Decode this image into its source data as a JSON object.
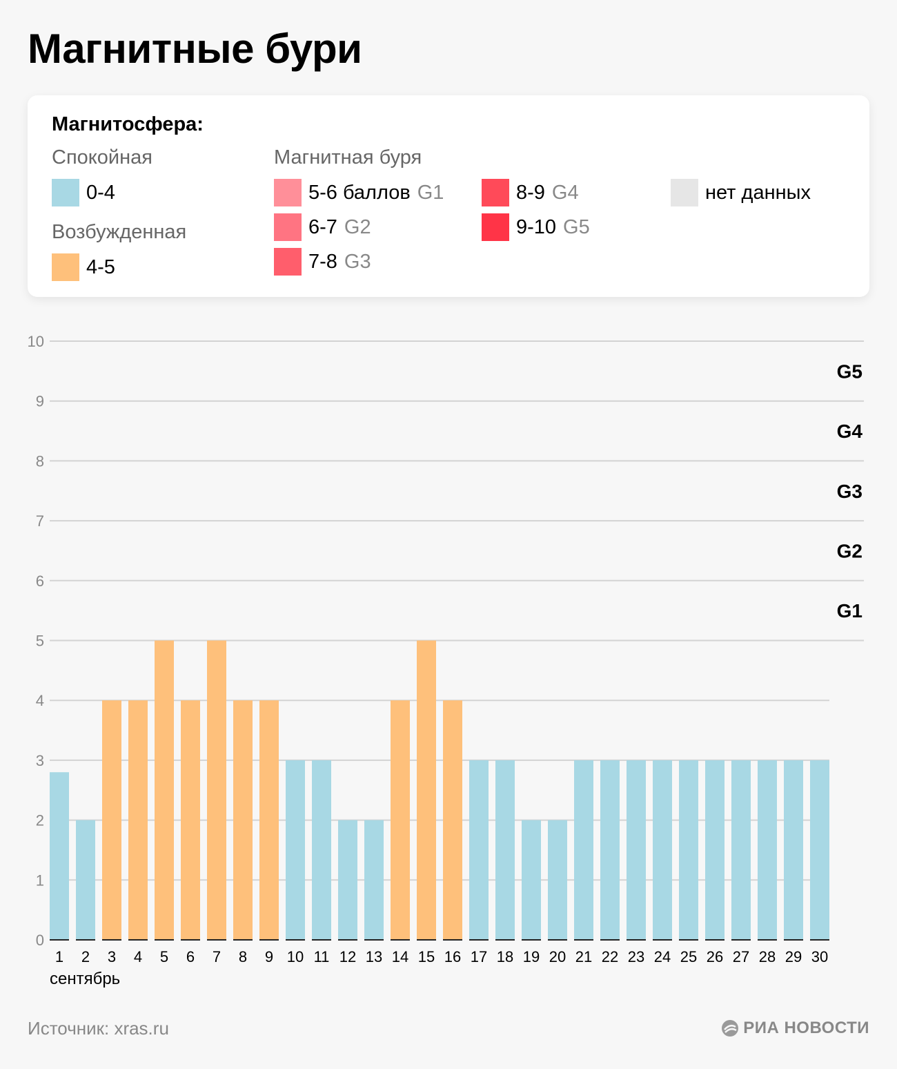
{
  "title": "Магнитные бури",
  "legend": {
    "heading": "Магнитосфера:",
    "calm": {
      "label": "Спокойная",
      "item": {
        "range": "0-4",
        "color": "#a8d8e4"
      }
    },
    "excited": {
      "label": "Возбужденная",
      "item": {
        "range": "4-5",
        "color": "#fec07b"
      }
    },
    "storm": {
      "label": "Магнитная буря",
      "items": [
        {
          "range": "5-6 баллов",
          "level": "G1",
          "color": "#ff8f99"
        },
        {
          "range": "6-7",
          "level": "G2",
          "color": "#ff7482"
        },
        {
          "range": "7-8",
          "level": "G3",
          "color": "#ff5e6c"
        },
        {
          "range": "8-9",
          "level": "G4",
          "color": "#ff4a59"
        },
        {
          "range": "9-10",
          "level": "G5",
          "color": "#ff3447"
        }
      ]
    },
    "nodata": {
      "label": "нет данных",
      "color": "#e6e6e6"
    }
  },
  "chart_data": {
    "type": "bar",
    "categories": [
      "1",
      "2",
      "3",
      "4",
      "5",
      "6",
      "7",
      "8",
      "9",
      "10",
      "11",
      "12",
      "13",
      "14",
      "15",
      "16",
      "17",
      "18",
      "19",
      "20",
      "21",
      "22",
      "23",
      "24",
      "25",
      "26",
      "27",
      "28",
      "29",
      "30"
    ],
    "values": [
      2.8,
      2,
      4,
      4,
      5,
      4,
      5,
      4,
      4,
      3,
      3,
      2,
      2,
      4,
      5,
      4,
      3,
      3,
      2,
      2,
      3,
      3,
      3,
      3,
      3,
      3,
      3,
      3,
      3,
      3
    ],
    "colors": [
      "calm",
      "calm",
      "excited",
      "excited",
      "excited",
      "excited",
      "excited",
      "excited",
      "excited",
      "calm",
      "calm",
      "calm",
      "calm",
      "excited",
      "excited",
      "excited",
      "calm",
      "calm",
      "calm",
      "calm",
      "calm",
      "calm",
      "calm",
      "calm",
      "calm",
      "calm",
      "calm",
      "calm",
      "calm",
      "calm"
    ],
    "ylim": [
      0,
      10
    ],
    "yticks": [
      "0",
      "1",
      "2",
      "3",
      "4",
      "5",
      "6",
      "7",
      "8",
      "9",
      "10"
    ],
    "xlabel": "сентябрь",
    "ylabel": "",
    "level_labels": [
      {
        "label": "G1",
        "y": 5.5
      },
      {
        "label": "G2",
        "y": 6.5
      },
      {
        "label": "G3",
        "y": 7.5
      },
      {
        "label": "G4",
        "y": 8.5
      },
      {
        "label": "G5",
        "y": 9.5
      }
    ],
    "grid": true,
    "color_map": {
      "calm": "#a8d8e4",
      "excited": "#fec07b"
    }
  },
  "footer": {
    "source": "Источник: xras.ru",
    "brand": "РИА НОВОСТИ"
  }
}
